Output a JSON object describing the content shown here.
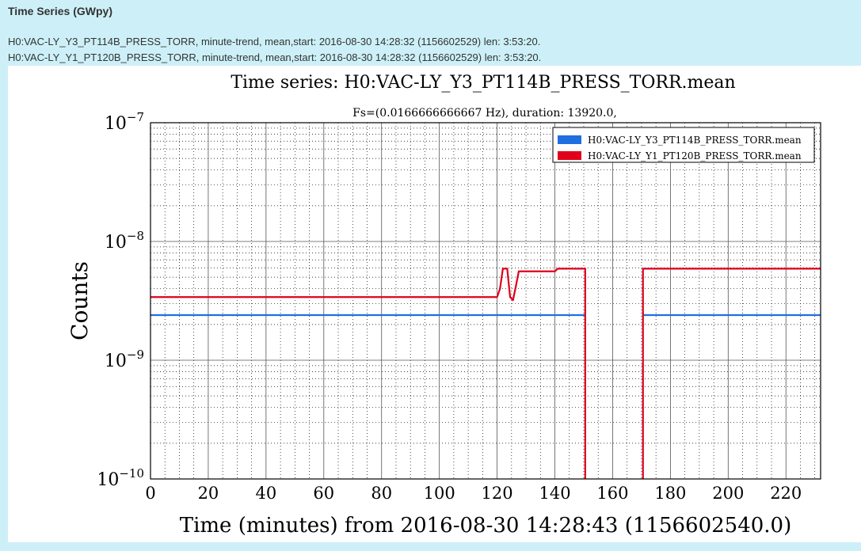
{
  "page": {
    "header": "Time Series (GWpy)",
    "info_lines": [
      "H0:VAC-LY_Y3_PT114B_PRESS_TORR, minute-trend, mean,start: 2016-08-30 14:28:32 (1156602529) len: 3:53:20.",
      "H0:VAC-LY_Y1_PT120B_PRESS_TORR, minute-trend, mean,start: 2016-08-30 14:28:32 (1156602529) len: 3:53:20."
    ]
  },
  "colors": {
    "background": "#cdf0f8",
    "series1": "#1f6fe0",
    "series2": "#e0001a"
  },
  "chart_data": {
    "type": "line",
    "title": "Time series:  H0:VAC-LY_Y3_PT114B_PRESS_TORR.mean",
    "subtitle": "Fs=(0.0166666666667 Hz), duration:  13920.0,",
    "xlabel": "Time (minutes) from 2016-08-30 14:28:43 (1156602540.0)",
    "ylabel": "Counts",
    "xlim": [
      0,
      232
    ],
    "ylim": [
      1e-10,
      1e-07
    ],
    "yscale": "log",
    "grid": true,
    "legend_position": "top-right",
    "xticks": [
      0,
      20,
      40,
      60,
      80,
      100,
      120,
      140,
      160,
      180,
      200,
      220
    ],
    "xtick_labels": [
      "0",
      "20",
      "40",
      "60",
      "80",
      "100",
      "120",
      "140",
      "160",
      "180",
      "200",
      "220"
    ],
    "yticks": [
      1e-10,
      1e-09,
      1e-08,
      1e-07
    ],
    "ytick_labels": [
      {
        "base": "10",
        "exp": "−10"
      },
      {
        "base": "10",
        "exp": "−9"
      },
      {
        "base": "10",
        "exp": "−8"
      },
      {
        "base": "10",
        "exp": "−7"
      }
    ],
    "series": [
      {
        "name": "H0:VAC-LY_Y3_PT114B_PRESS_TORR.mean",
        "color": "#1f6fe0",
        "segments": [
          [
            [
              0,
              2.4e-09
            ],
            [
              150.5,
              2.4e-09
            ]
          ],
          [
            [
              170.5,
              2.4e-09
            ],
            [
              232,
              2.4e-09
            ]
          ]
        ]
      },
      {
        "name": "H0:VAC-LY_Y1_PT120B_PRESS_TORR.mean",
        "color": "#e0001a",
        "segments": [
          [
            [
              0,
              3.4e-09
            ],
            [
              120,
              3.4e-09
            ],
            [
              121,
              4e-09
            ],
            [
              122,
              5.9e-09
            ],
            [
              123.5,
              5.9e-09
            ],
            [
              124.5,
              3.4e-09
            ],
            [
              125.5,
              3.2e-09
            ],
            [
              126.5,
              4.2e-09
            ],
            [
              127.5,
              5.6e-09
            ],
            [
              140,
              5.6e-09
            ],
            [
              141,
              5.9e-09
            ],
            [
              150.5,
              5.9e-09
            ],
            [
              150.5,
              1e-10
            ]
          ],
          [
            [
              170.5,
              1e-10
            ],
            [
              170.5,
              5.9e-09
            ],
            [
              232,
              5.9e-09
            ]
          ]
        ]
      }
    ]
  }
}
